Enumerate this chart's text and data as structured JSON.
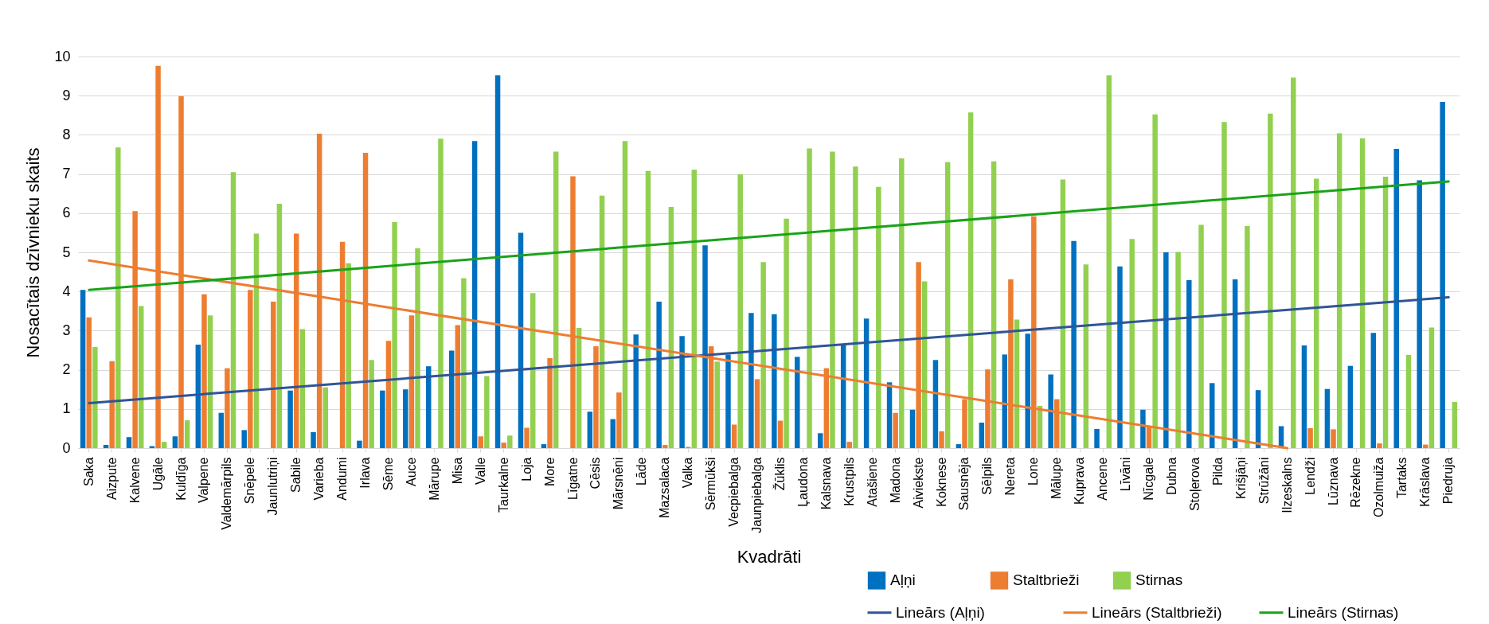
{
  "chart_data": {
    "type": "bar",
    "xlabel": "Kvadrāti",
    "ylabel": "Nosacītais dzīvnieku skaits",
    "categories": [
      "Saka",
      "Aizpute",
      "Kalvene",
      "Ugāle",
      "Kuldīga",
      "Valpene",
      "Valdemārpils",
      "Snēpele",
      "Jaunlutriņi",
      "Sabile",
      "Varieba",
      "Andumi",
      "Irlava",
      "Sēme",
      "Auce",
      "Mārupe",
      "Misa",
      "Valle",
      "Taurkalne",
      "Loja",
      "More",
      "Līgatne",
      "Cēsis",
      "Mārsnēni",
      "Lāde",
      "Mazsalaca",
      "Valka",
      "Sērmūkši",
      "Vecpiebalga",
      "Jaunpiebalga",
      "Žūklis",
      "Ļaudona",
      "Kalsnava",
      "Krustpils",
      "Atašiene",
      "Madona",
      "Aiviekste",
      "Koknese",
      "Sausnēja",
      "Sēlpils",
      "Nereta",
      "Lone",
      "Mālupe",
      "Kuprava",
      "Ancene",
      "Līvāni",
      "Nīcgale",
      "Dubna",
      "Stoļerova",
      "Pilda",
      "Krišjāņi",
      "Strūžāni",
      "Ilzeskalns",
      "Lendži",
      "Lūznava",
      "Rēzekne",
      "Ozolmuiža",
      "Tartaks",
      "Krāslava",
      "Piedruja"
    ],
    "series": [
      {
        "name": "Aļņi",
        "color": "#0070c0",
        "values": [
          4.04,
          0.08,
          0.28,
          0.05,
          0.3,
          2.64,
          0.9,
          0.46,
          0,
          1.47,
          0.41,
          0,
          0.19,
          1.47,
          1.5,
          2.09,
          2.49,
          7.84,
          9.52,
          5.5,
          0.1,
          0,
          0.93,
          0.74,
          2.9,
          3.74,
          2.86,
          5.18,
          2.39,
          3.45,
          3.42,
          2.33,
          0.38,
          2.64,
          3.31,
          1.68,
          0.98,
          2.25,
          0.1,
          0.65,
          2.39,
          2.92,
          1.88,
          5.29,
          0.49,
          4.64,
          0.98,
          5.0,
          4.29,
          1.66,
          4.31,
          1.48,
          0.56,
          2.62,
          1.51,
          2.1,
          2.94,
          7.64,
          6.84,
          8.84
        ]
      },
      {
        "name": "Staltbrieži",
        "color": "#ed7d31",
        "values": [
          3.34,
          2.22,
          6.05,
          9.76,
          8.99,
          3.93,
          2.04,
          4.04,
          3.74,
          5.48,
          8.03,
          5.27,
          7.54,
          2.74,
          3.39,
          0,
          3.14,
          0.3,
          0.14,
          0.52,
          2.3,
          6.94,
          2.6,
          1.42,
          0,
          0.08,
          0.03,
          2.6,
          0.6,
          1.76,
          0.7,
          0,
          2.04,
          0.16,
          0,
          0.9,
          4.75,
          0.43,
          1.25,
          2.01,
          4.31,
          5.92,
          1.25,
          0,
          0,
          0,
          0.53,
          0,
          0,
          0,
          0,
          0,
          0,
          0.51,
          0.48,
          0,
          0.12,
          0,
          0.09,
          0
        ]
      },
      {
        "name": "Stirnas",
        "color": "#92d050",
        "values": [
          2.58,
          7.68,
          3.63,
          0.16,
          0.71,
          3.39,
          7.05,
          5.48,
          6.24,
          3.04,
          1.55,
          4.72,
          2.25,
          5.77,
          5.1,
          7.9,
          4.34,
          1.84,
          0.32,
          3.96,
          7.57,
          3.07,
          6.45,
          7.84,
          7.08,
          6.16,
          7.11,
          2.21,
          6.99,
          4.75,
          5.86,
          7.65,
          7.57,
          7.19,
          6.67,
          7.4,
          4.26,
          7.3,
          8.57,
          7.32,
          3.28,
          1.08,
          6.86,
          4.69,
          9.52,
          5.34,
          8.52,
          5.01,
          5.7,
          8.33,
          5.67,
          8.54,
          9.46,
          6.88,
          8.04,
          7.91,
          6.93,
          2.38,
          3.08,
          1.18
        ]
      },
      {
        "name": "Lineārs (Aļņi)",
        "type": "line",
        "color": "#2f5597",
        "x": [
          "Saka",
          "Piedruja"
        ],
        "values": [
          1.15,
          3.85
        ]
      },
      {
        "name": "Lineārs (Staltbrieži)",
        "type": "line",
        "color": "#ed7d31",
        "x": [
          "Saka",
          "Ilzeskalns"
        ],
        "values": [
          4.79,
          0
        ]
      },
      {
        "name": "Lineārs (Stirnas)",
        "type": "line",
        "color": "#1aa31a",
        "x": [
          "Saka",
          "Piedruja"
        ],
        "values": [
          4.04,
          6.81
        ]
      }
    ],
    "ylim": [
      0,
      10
    ],
    "yticks": [
      0,
      1,
      2,
      3,
      4,
      5,
      6,
      7,
      8,
      9,
      10
    ],
    "grid": "y",
    "legend": "bottom right"
  }
}
